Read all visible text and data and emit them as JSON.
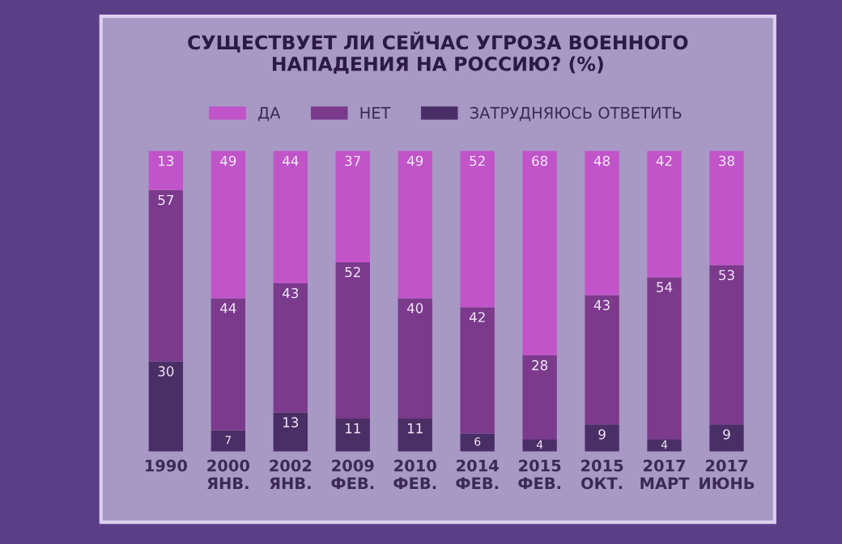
{
  "chart_data": {
    "type": "bar",
    "stacked": true,
    "title": "СУЩЕСТВУЕТ ЛИ СЕЙЧАС УГРОЗА ВОЕННОГО\nНАПАДЕНИЯ НА РОССИЮ? (%)",
    "categories": [
      "1990",
      "2000\nЯНВ.",
      "2002\nЯНВ.",
      "2009\nФЕВ.",
      "2010\nФЕВ.",
      "2014\nФЕВ.",
      "2015\nФЕВ.",
      "2015\nОКТ.",
      "2017\nМАРТ",
      "2017\nИЮНЬ"
    ],
    "series": [
      {
        "name": "ЗАТРУДНЯЮСЬ ОТВЕТИТЬ",
        "color": "#4a2f66",
        "values": [
          30,
          7,
          13,
          11,
          11,
          6,
          4,
          9,
          4,
          9
        ]
      },
      {
        "name": "НЕТ",
        "color": "#7b3a8c",
        "values": [
          57,
          44,
          43,
          52,
          40,
          42,
          28,
          43,
          54,
          53
        ]
      },
      {
        "name": "ДА",
        "color": "#c154c8",
        "values": [
          13,
          49,
          44,
          37,
          49,
          52,
          68,
          48,
          42,
          38
        ]
      }
    ],
    "data_labels": true,
    "legend": "top",
    "grid": false
  }
}
